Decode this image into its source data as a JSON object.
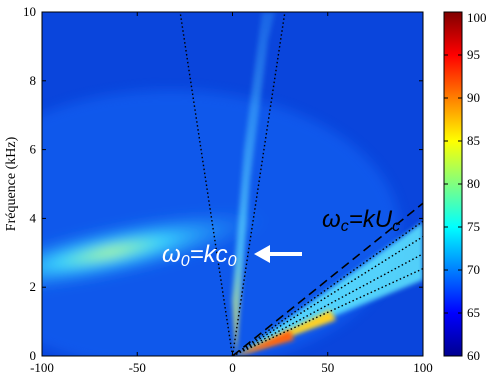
{
  "chart_data": {
    "type": "heatmap",
    "title": "",
    "xlabel": "",
    "ylabel": "Fréquence (kHz)",
    "xlim": [
      -100,
      100
    ],
    "ylim": [
      0,
      10
    ],
    "x_ticks": [
      "-100",
      "-50",
      "0",
      "50",
      "100"
    ],
    "y_ticks": [
      "0",
      "2",
      "4",
      "6",
      "8",
      "10"
    ],
    "colorbar": {
      "range": [
        60,
        100
      ],
      "ticks": [
        "60",
        "65",
        "70",
        "75",
        "80",
        "85",
        "90",
        "95",
        "100"
      ],
      "colormap": "jet"
    },
    "annotations": {
      "acoustic_label_lhs": "ω",
      "acoustic_label_sub": "0",
      "acoustic_label_rhs": "=kc",
      "acoustic_label_rhs_sub": "0",
      "convective_label_lhs": "ω",
      "convective_label_sub": "c",
      "convective_label_rhs": "=kU",
      "convective_label_rhs_sub": "c"
    },
    "acoustic_cone": {
      "slopes_khz_per_unit_k": [
        -0.3636,
        0.3636
      ]
    },
    "convective_ridge": {
      "dashed_slope_khz_per_unit_k": 0.0444,
      "dotted_slopes_khz_per_unit_k": [
        0.0392,
        0.0347,
        0.0297,
        0.0254
      ]
    }
  },
  "colors": {
    "background_blue": "#0a3fd8",
    "colorbar_stops": [
      "#00008f",
      "#0000ff",
      "#0080ff",
      "#00ffff",
      "#80ff80",
      "#ffff00",
      "#ff8000",
      "#ff0000",
      "#800000"
    ]
  }
}
